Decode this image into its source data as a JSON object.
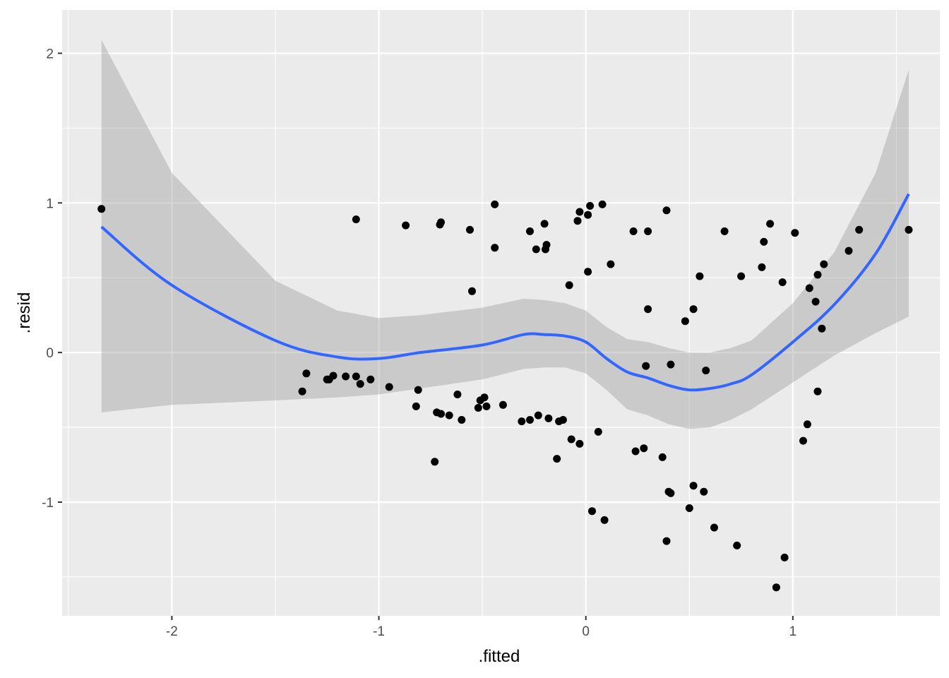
{
  "chart_data": {
    "type": "scatter",
    "title": "",
    "xlabel": ".fitted",
    "ylabel": ".resid",
    "xlim": [
      -2.53,
      1.71
    ],
    "ylim": [
      -1.76,
      2.29
    ],
    "x_ticks": [
      -2,
      -1,
      0,
      1
    ],
    "x_tick_labels": [
      "-2",
      "-1",
      "0",
      "1"
    ],
    "y_ticks": [
      -1,
      0,
      1,
      2
    ],
    "y_tick_labels": [
      "-1",
      "0",
      "1",
      "2"
    ],
    "grid": true,
    "colors": {
      "panel_background": "#ebebeb",
      "grid": "#ffffff",
      "points": "#000000",
      "smooth_line": "#3366ff",
      "confidence_band": "#999999"
    },
    "points": [
      {
        "x": -2.34,
        "y": 0.96
      },
      {
        "x": -1.11,
        "y": 0.89
      },
      {
        "x": -0.87,
        "y": 0.85
      },
      {
        "x": -0.7,
        "y": 0.87
      },
      {
        "x": -0.705,
        "y": 0.855
      },
      {
        "x": -0.56,
        "y": 0.82
      },
      {
        "x": -0.44,
        "y": 0.99
      },
      {
        "x": -0.44,
        "y": 0.7
      },
      {
        "x": -0.27,
        "y": 0.81
      },
      {
        "x": -0.24,
        "y": 0.69
      },
      {
        "x": -0.2,
        "y": 0.86
      },
      {
        "x": -0.19,
        "y": 0.72
      },
      {
        "x": -0.195,
        "y": 0.69
      },
      {
        "x": -0.04,
        "y": 0.88
      },
      {
        "x": -0.03,
        "y": 0.94
      },
      {
        "x": 0.01,
        "y": 0.92
      },
      {
        "x": 0.02,
        "y": 0.98
      },
      {
        "x": 0.08,
        "y": 0.99
      },
      {
        "x": 0.01,
        "y": 0.54
      },
      {
        "x": 0.12,
        "y": 0.59
      },
      {
        "x": -0.08,
        "y": 0.45
      },
      {
        "x": -0.55,
        "y": 0.41
      },
      {
        "x": 0.23,
        "y": 0.81
      },
      {
        "x": 0.3,
        "y": 0.81
      },
      {
        "x": 0.39,
        "y": 0.95
      },
      {
        "x": 0.3,
        "y": 0.29
      },
      {
        "x": 0.48,
        "y": 0.21
      },
      {
        "x": 0.52,
        "y": 0.29
      },
      {
        "x": 0.55,
        "y": 0.51
      },
      {
        "x": 0.67,
        "y": 0.81
      },
      {
        "x": 0.75,
        "y": 0.51
      },
      {
        "x": 0.85,
        "y": 0.57
      },
      {
        "x": 0.86,
        "y": 0.74
      },
      {
        "x": 0.89,
        "y": 0.86
      },
      {
        "x": 0.95,
        "y": 0.47
      },
      {
        "x": 1.01,
        "y": 0.8
      },
      {
        "x": 1.08,
        "y": 0.43
      },
      {
        "x": 1.11,
        "y": 0.34
      },
      {
        "x": 1.12,
        "y": 0.52
      },
      {
        "x": 1.15,
        "y": 0.59
      },
      {
        "x": 1.14,
        "y": 0.16
      },
      {
        "x": 1.27,
        "y": 0.68
      },
      {
        "x": 1.32,
        "y": 0.82
      },
      {
        "x": 1.56,
        "y": 0.82
      },
      {
        "x": -1.37,
        "y": -0.26
      },
      {
        "x": -1.35,
        "y": -0.14
      },
      {
        "x": -1.25,
        "y": -0.18
      },
      {
        "x": -1.24,
        "y": -0.18
      },
      {
        "x": -1.22,
        "y": -0.155
      },
      {
        "x": -1.16,
        "y": -0.16
      },
      {
        "x": -1.11,
        "y": -0.16
      },
      {
        "x": -1.09,
        "y": -0.21
      },
      {
        "x": -1.04,
        "y": -0.18
      },
      {
        "x": -0.95,
        "y": -0.23
      },
      {
        "x": -0.81,
        "y": -0.25
      },
      {
        "x": -0.82,
        "y": -0.36
      },
      {
        "x": -0.72,
        "y": -0.4
      },
      {
        "x": -0.7,
        "y": -0.41
      },
      {
        "x": -0.66,
        "y": -0.42
      },
      {
        "x": -0.62,
        "y": -0.28
      },
      {
        "x": -0.6,
        "y": -0.45
      },
      {
        "x": -0.51,
        "y": -0.32
      },
      {
        "x": -0.49,
        "y": -0.3
      },
      {
        "x": -0.52,
        "y": -0.37
      },
      {
        "x": -0.48,
        "y": -0.36
      },
      {
        "x": -0.4,
        "y": -0.35
      },
      {
        "x": -0.73,
        "y": -0.73
      },
      {
        "x": -0.31,
        "y": -0.46
      },
      {
        "x": -0.27,
        "y": -0.45
      },
      {
        "x": -0.23,
        "y": -0.42
      },
      {
        "x": -0.18,
        "y": -0.44
      },
      {
        "x": -0.13,
        "y": -0.46
      },
      {
        "x": -0.11,
        "y": -0.45
      },
      {
        "x": -0.14,
        "y": -0.71
      },
      {
        "x": -0.07,
        "y": -0.58
      },
      {
        "x": -0.03,
        "y": -0.61
      },
      {
        "x": 0.06,
        "y": -0.53
      },
      {
        "x": 0.03,
        "y": -1.06
      },
      {
        "x": 0.09,
        "y": -1.12
      },
      {
        "x": 0.24,
        "y": -0.66
      },
      {
        "x": 0.28,
        "y": -0.64
      },
      {
        "x": 0.37,
        "y": -0.7
      },
      {
        "x": 0.39,
        "y": -1.26
      },
      {
        "x": 0.4,
        "y": -0.93
      },
      {
        "x": 0.41,
        "y": -0.94
      },
      {
        "x": 0.52,
        "y": -0.89
      },
      {
        "x": 0.5,
        "y": -1.04
      },
      {
        "x": 0.57,
        "y": -0.93
      },
      {
        "x": 0.62,
        "y": -1.17
      },
      {
        "x": 0.73,
        "y": -1.29
      },
      {
        "x": 0.92,
        "y": -1.57
      },
      {
        "x": 0.96,
        "y": -1.37
      },
      {
        "x": 1.05,
        "y": -0.59
      },
      {
        "x": 1.07,
        "y": -0.48
      },
      {
        "x": 1.12,
        "y": -0.26
      },
      {
        "x": 0.29,
        "y": -0.09
      },
      {
        "x": 0.41,
        "y": -0.08
      },
      {
        "x": 0.58,
        "y": -0.12
      }
    ],
    "smooth": {
      "x": [
        -2.34,
        -2.0,
        -1.5,
        -1.2,
        -1.0,
        -0.8,
        -0.5,
        -0.3,
        -0.2,
        -0.1,
        0.0,
        0.1,
        0.2,
        0.3,
        0.4,
        0.5,
        0.6,
        0.7,
        0.8,
        1.0,
        1.2,
        1.4,
        1.56
      ],
      "y": [
        0.84,
        0.45,
        0.08,
        -0.03,
        -0.04,
        0.0,
        0.05,
        0.12,
        0.12,
        0.11,
        0.07,
        -0.04,
        -0.13,
        -0.17,
        -0.22,
        -0.25,
        -0.24,
        -0.21,
        -0.15,
        0.07,
        0.32,
        0.66,
        1.06
      ],
      "lower": [
        -0.4,
        -0.35,
        -0.32,
        -0.3,
        -0.28,
        -0.24,
        -0.18,
        -0.11,
        -0.1,
        -0.1,
        -0.14,
        -0.25,
        -0.38,
        -0.42,
        -0.48,
        -0.51,
        -0.5,
        -0.45,
        -0.38,
        -0.2,
        -0.02,
        0.13,
        0.24
      ],
      "upper": [
        2.09,
        1.2,
        0.48,
        0.28,
        0.23,
        0.25,
        0.3,
        0.36,
        0.35,
        0.33,
        0.28,
        0.17,
        0.09,
        0.07,
        0.03,
        0.0,
        0.0,
        0.03,
        0.08,
        0.33,
        0.67,
        1.2,
        1.89
      ]
    }
  }
}
